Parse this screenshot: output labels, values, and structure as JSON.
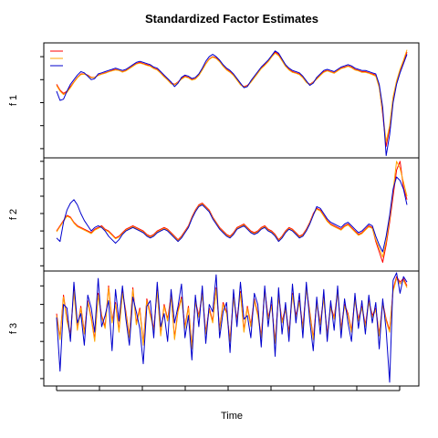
{
  "chart_data": [
    {
      "type": "line",
      "title": "Standardized Factor Estimates",
      "ylabel": "f 1",
      "xlabel": "",
      "grid": false,
      "legend": "top-left",
      "ylim": [
        -3.4,
        1.6
      ],
      "yticks": [
        -3,
        -2,
        -1,
        0,
        1
      ],
      "series": [
        {
          "color": "#ff0000",
          "values": [
            -0.2,
            -0.45,
            -0.6,
            -0.5,
            -0.3,
            -0.1,
            0.1,
            0.25,
            0.25,
            0.2,
            0.1,
            0.1,
            0.2,
            0.25,
            0.3,
            0.35,
            0.4,
            0.45,
            0.4,
            0.35,
            0.4,
            0.5,
            0.6,
            0.7,
            0.75,
            0.7,
            0.65,
            0.6,
            0.5,
            0.45,
            0.3,
            0.15,
            0.0,
            -0.15,
            -0.2,
            -0.1,
            0.05,
            0.15,
            0.1,
            0.0,
            0.05,
            0.2,
            0.45,
            0.7,
            0.9,
            1.0,
            0.95,
            0.8,
            0.6,
            0.45,
            0.35,
            0.2,
            0.0,
            -0.2,
            -0.3,
            -0.25,
            -0.1,
            0.1,
            0.3,
            0.5,
            0.65,
            0.8,
            1.0,
            1.2,
            1.1,
            0.85,
            0.6,
            0.45,
            0.35,
            0.3,
            0.25,
            0.1,
            -0.1,
            -0.2,
            -0.1,
            0.05,
            0.2,
            0.35,
            0.4,
            0.35,
            0.3,
            0.4,
            0.5,
            0.55,
            0.6,
            0.55,
            0.45,
            0.4,
            0.35,
            0.35,
            0.3,
            0.25,
            0.2,
            -0.3,
            -1.5,
            -2.9,
            -2.1,
            -0.8,
            -0.1,
            0.4,
            0.8,
            1.2
          ]
        },
        {
          "color": "#ffa500",
          "values": [
            -0.25,
            -0.5,
            -0.65,
            -0.55,
            -0.35,
            -0.12,
            0.08,
            0.22,
            0.24,
            0.18,
            0.08,
            0.1,
            0.18,
            0.24,
            0.28,
            0.34,
            0.38,
            0.42,
            0.4,
            0.33,
            0.38,
            0.48,
            0.58,
            0.68,
            0.72,
            0.68,
            0.62,
            0.58,
            0.48,
            0.42,
            0.28,
            0.12,
            -0.02,
            -0.18,
            -0.22,
            -0.12,
            0.02,
            0.12,
            0.08,
            -0.02,
            0.03,
            0.18,
            0.42,
            0.68,
            0.88,
            0.98,
            0.92,
            0.78,
            0.58,
            0.42,
            0.32,
            0.18,
            -0.02,
            -0.22,
            -0.32,
            -0.28,
            -0.12,
            0.08,
            0.28,
            0.48,
            0.62,
            0.78,
            0.98,
            1.15,
            1.05,
            0.82,
            0.58,
            0.42,
            0.32,
            0.28,
            0.22,
            0.08,
            -0.12,
            -0.22,
            -0.12,
            0.02,
            0.18,
            0.32,
            0.38,
            0.33,
            0.28,
            0.38,
            0.48,
            0.52,
            0.58,
            0.52,
            0.42,
            0.38,
            0.32,
            0.32,
            0.28,
            0.22,
            0.15,
            -0.35,
            -1.4,
            -2.7,
            -2.0,
            -0.75,
            -0.05,
            0.45,
            0.85,
            1.3
          ]
        },
        {
          "color": "#0000cd",
          "values": [
            -0.5,
            -0.9,
            -0.85,
            -0.5,
            -0.2,
            0.0,
            0.2,
            0.35,
            0.3,
            0.15,
            0.0,
            0.05,
            0.25,
            0.3,
            0.35,
            0.4,
            0.45,
            0.5,
            0.45,
            0.4,
            0.45,
            0.55,
            0.65,
            0.75,
            0.8,
            0.75,
            0.7,
            0.65,
            0.55,
            0.5,
            0.35,
            0.2,
            0.05,
            -0.1,
            -0.3,
            -0.15,
            0.1,
            0.2,
            0.15,
            0.05,
            0.1,
            0.25,
            0.5,
            0.8,
            1.0,
            1.1,
            1.0,
            0.85,
            0.65,
            0.5,
            0.4,
            0.25,
            0.05,
            -0.15,
            -0.35,
            -0.3,
            -0.05,
            0.15,
            0.35,
            0.55,
            0.7,
            0.85,
            1.05,
            1.25,
            1.15,
            0.9,
            0.65,
            0.5,
            0.4,
            0.35,
            0.3,
            0.15,
            -0.05,
            -0.25,
            -0.15,
            0.1,
            0.25,
            0.4,
            0.45,
            0.4,
            0.35,
            0.45,
            0.55,
            0.6,
            0.65,
            0.6,
            0.5,
            0.45,
            0.4,
            0.4,
            0.35,
            0.3,
            0.25,
            -0.2,
            -1.2,
            -3.3,
            -2.4,
            -1.0,
            -0.2,
            0.3,
            0.7,
            1.1
          ]
        }
      ]
    },
    {
      "type": "line",
      "ylabel": "f 2",
      "xlabel": "",
      "grid": false,
      "ylim": [
        -2.3,
        4.2
      ],
      "yticks": [
        -2,
        -1,
        0,
        1,
        2,
        3,
        4
      ],
      "series": [
        {
          "color": "#ff0000",
          "values": [
            0.0,
            0.3,
            0.6,
            0.9,
            0.8,
            0.5,
            0.3,
            0.2,
            0.1,
            0.0,
            -0.1,
            0.1,
            0.2,
            0.3,
            0.1,
            0.0,
            -0.2,
            -0.4,
            -0.3,
            -0.1,
            0.1,
            0.2,
            0.3,
            0.2,
            0.1,
            0.0,
            -0.2,
            -0.3,
            -0.2,
            0.0,
            0.1,
            0.2,
            0.1,
            -0.1,
            -0.3,
            -0.5,
            -0.3,
            0.0,
            0.3,
            0.8,
            1.2,
            1.5,
            1.6,
            1.4,
            1.2,
            0.8,
            0.5,
            0.2,
            0.0,
            -0.2,
            -0.3,
            -0.1,
            0.2,
            0.3,
            0.4,
            0.2,
            0.0,
            -0.1,
            0.0,
            0.2,
            0.3,
            0.1,
            0.0,
            -0.2,
            -0.5,
            -0.3,
            0.0,
            0.2,
            0.1,
            -0.1,
            -0.3,
            -0.2,
            0.1,
            0.5,
            1.0,
            1.3,
            1.2,
            0.9,
            0.6,
            0.4,
            0.3,
            0.2,
            0.1,
            0.3,
            0.4,
            0.2,
            0.0,
            -0.2,
            -0.1,
            0.1,
            0.3,
            0.2,
            -0.6,
            -1.2,
            -1.8,
            -0.8,
            0.5,
            2.0,
            3.5,
            4.0,
            2.5,
            1.8
          ]
        },
        {
          "color": "#ffa500",
          "values": [
            -0.05,
            0.25,
            0.55,
            0.85,
            0.75,
            0.45,
            0.25,
            0.15,
            0.05,
            -0.05,
            -0.15,
            0.05,
            0.15,
            0.25,
            0.05,
            -0.05,
            -0.25,
            -0.45,
            -0.35,
            -0.15,
            0.05,
            0.15,
            0.25,
            0.15,
            0.05,
            -0.05,
            -0.25,
            -0.35,
            -0.25,
            -0.05,
            0.05,
            0.15,
            0.05,
            -0.15,
            -0.35,
            -0.55,
            -0.35,
            -0.05,
            0.25,
            0.75,
            1.15,
            1.45,
            1.55,
            1.35,
            1.15,
            0.75,
            0.45,
            0.15,
            -0.05,
            -0.25,
            -0.35,
            -0.15,
            0.15,
            0.25,
            0.35,
            0.15,
            -0.05,
            -0.15,
            -0.05,
            0.15,
            0.25,
            0.05,
            -0.05,
            -0.25,
            -0.55,
            -0.35,
            -0.05,
            0.15,
            0.05,
            -0.15,
            -0.35,
            -0.25,
            0.05,
            0.45,
            0.95,
            1.25,
            1.15,
            0.85,
            0.55,
            0.35,
            0.25,
            0.15,
            0.05,
            0.25,
            0.35,
            0.15,
            -0.05,
            -0.25,
            -0.15,
            0.05,
            0.25,
            0.15,
            -0.5,
            -1.0,
            -1.5,
            -0.6,
            0.7,
            2.3,
            4.0,
            3.6,
            2.8,
            2.0
          ]
        },
        {
          "color": "#0000cd",
          "values": [
            -0.4,
            -0.6,
            0.5,
            1.2,
            1.6,
            1.8,
            1.5,
            1.0,
            0.6,
            0.3,
            0.0,
            0.2,
            0.3,
            0.2,
            0.0,
            -0.3,
            -0.5,
            -0.7,
            -0.5,
            -0.2,
            0.0,
            0.1,
            0.2,
            0.1,
            0.0,
            -0.1,
            -0.3,
            -0.4,
            -0.3,
            -0.1,
            0.0,
            0.1,
            0.0,
            -0.2,
            -0.4,
            -0.6,
            -0.4,
            -0.1,
            0.2,
            0.7,
            1.1,
            1.4,
            1.5,
            1.3,
            1.1,
            0.7,
            0.4,
            0.1,
            -0.1,
            -0.3,
            -0.4,
            -0.2,
            0.1,
            0.2,
            0.3,
            0.1,
            -0.1,
            -0.2,
            -0.1,
            0.1,
            0.2,
            0.0,
            -0.1,
            -0.3,
            -0.6,
            -0.4,
            -0.1,
            0.1,
            0.0,
            -0.2,
            -0.4,
            -0.3,
            0.0,
            0.4,
            0.9,
            1.4,
            1.3,
            1.0,
            0.7,
            0.5,
            0.4,
            0.3,
            0.2,
            0.4,
            0.5,
            0.3,
            0.1,
            -0.1,
            0.0,
            0.2,
            0.4,
            0.3,
            -0.3,
            -0.8,
            -1.2,
            -0.3,
            0.9,
            2.4,
            3.1,
            2.9,
            2.4,
            1.5
          ]
        }
      ]
    },
    {
      "type": "line",
      "ylabel": "f 3",
      "xlabel": "Time",
      "grid": false,
      "ylim": [
        -3.4,
        2.8
      ],
      "yticks": [
        -3,
        -2,
        -1,
        0,
        1,
        2
      ],
      "xticks_count": 9,
      "series": [
        {
          "color": "#ff0000",
          "values": [
            0.5,
            -0.8,
            1.5,
            0.2,
            -0.6,
            1.8,
            -0.3,
            0.9,
            -0.5,
            1.2,
            0.3,
            -0.9,
            1.6,
            0.4,
            -0.2,
            2.0,
            0.1,
            1.1,
            -0.4,
            1.7,
            0.6,
            -0.7,
            1.9,
            0.0,
            0.8,
            -1.1,
            1.3,
            0.5,
            -0.3,
            1.8,
            -0.6,
            1.0,
            0.2,
            1.5,
            -0.8,
            0.7,
            1.4,
            -0.2,
            0.9,
            -1.3,
            1.2,
            0.4,
            1.6,
            -0.5,
            0.8,
            0.1,
            1.9,
            -0.3,
            1.1,
            0.6,
            -0.9,
            1.4,
            0.2,
            1.7,
            -0.4,
            0.9,
            -0.1,
            1.3,
            0.5,
            -0.7,
            1.8,
            0.3,
            1.0,
            -1.0,
            1.5,
            0.1,
            0.8,
            -0.5,
            1.6,
            0.4,
            1.2,
            -0.2,
            1.9,
            0.6,
            -0.8,
            1.1,
            0.0,
            1.4,
            -0.6,
            0.9,
            0.3,
            1.7,
            -0.3,
            1.0,
            0.5,
            -0.4,
            1.3,
            0.2,
            0.9,
            -0.1,
            1.2,
            0.4,
            0.8,
            -0.6,
            1.1,
            0.2,
            -0.4,
            1.8,
            2.5,
            2.2,
            2.4,
            2.0
          ]
        },
        {
          "color": "#ffa500",
          "values": [
            0.4,
            -0.9,
            1.4,
            0.1,
            -0.7,
            1.7,
            -0.4,
            0.8,
            -0.6,
            1.1,
            0.2,
            -1.0,
            1.5,
            0.3,
            -0.3,
            1.9,
            0.0,
            1.0,
            -0.5,
            1.6,
            0.5,
            -0.8,
            1.8,
            -0.1,
            0.7,
            -1.2,
            1.2,
            0.4,
            -0.4,
            1.7,
            -0.7,
            0.9,
            0.1,
            1.4,
            -0.9,
            0.6,
            1.3,
            -0.3,
            0.8,
            -1.4,
            1.1,
            0.3,
            1.5,
            -0.6,
            0.7,
            0.0,
            1.8,
            -0.4,
            1.0,
            0.5,
            -1.0,
            1.3,
            0.1,
            1.6,
            -0.5,
            0.8,
            -0.2,
            1.2,
            0.4,
            -0.8,
            1.7,
            0.2,
            0.9,
            -1.1,
            1.4,
            0.0,
            0.7,
            -0.6,
            1.5,
            0.3,
            1.1,
            -0.3,
            1.8,
            0.5,
            -0.9,
            1.0,
            -0.1,
            1.3,
            -0.7,
            0.8,
            0.2,
            1.6,
            -0.4,
            0.9,
            0.4,
            -0.5,
            1.2,
            0.1,
            0.8,
            -0.2,
            1.1,
            0.3,
            0.7,
            -0.7,
            1.0,
            0.1,
            -0.5,
            1.7,
            2.4,
            2.1,
            2.3,
            1.9
          ]
        },
        {
          "color": "#0000cd",
          "values": [
            0.3,
            -2.6,
            1.0,
            0.8,
            -1.0,
            2.2,
            0.0,
            0.5,
            -1.2,
            1.5,
            0.8,
            -0.5,
            2.4,
            -0.2,
            0.4,
            1.2,
            -1.5,
            1.8,
            0.1,
            2.0,
            0.2,
            -1.2,
            1.4,
            0.6,
            -0.3,
            -2.2,
            0.9,
            1.2,
            -0.8,
            2.2,
            -0.2,
            0.5,
            -1.0,
            1.8,
            0.0,
            0.9,
            2.1,
            -0.8,
            0.4,
            -2.0,
            1.5,
            -0.2,
            2.0,
            -1.1,
            1.0,
            0.6,
            2.6,
            -0.8,
            0.6,
            1.1,
            -1.6,
            1.8,
            -0.2,
            2.2,
            0.2,
            0.4,
            -0.8,
            1.6,
            1.0,
            -1.3,
            2.0,
            -0.2,
            1.4,
            -1.8,
            1.9,
            -0.6,
            1.1,
            -1.0,
            2.1,
            0.0,
            1.6,
            -0.8,
            2.2,
            0.1,
            -1.5,
            1.4,
            -0.6,
            1.8,
            -1.0,
            1.2,
            -0.4,
            2.0,
            -0.8,
            1.3,
            0.0,
            -1.0,
            1.6,
            -0.3,
            1.2,
            -0.6,
            1.5,
            0.0,
            1.1,
            -1.4,
            1.3,
            -0.4,
            -3.2,
            2.3,
            2.7,
            1.6,
            2.5,
            2.2
          ]
        }
      ]
    }
  ]
}
